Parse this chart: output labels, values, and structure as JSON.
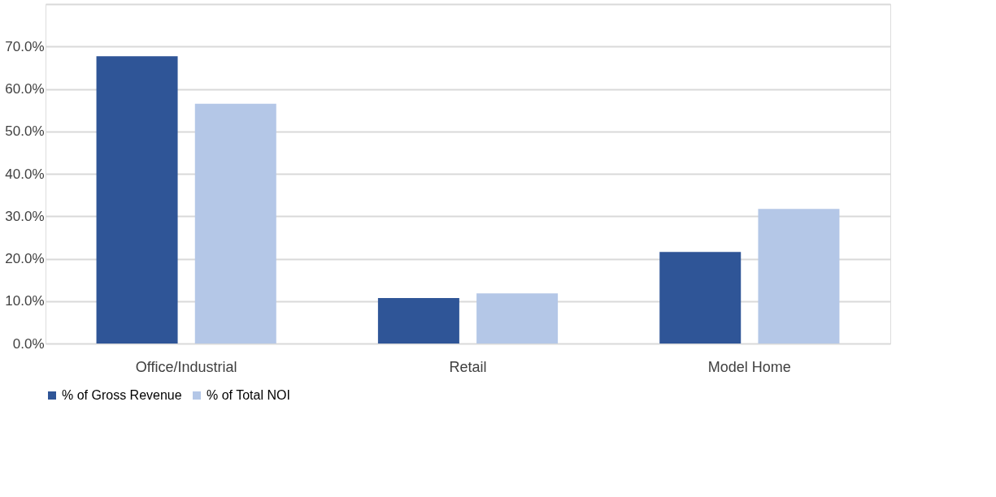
{
  "chart_data": {
    "type": "bar",
    "categories": [
      "Office/Industrial",
      "Retail",
      "Model Home"
    ],
    "series": [
      {
        "name": "% of Gross Revenue",
        "color": "#2f5597",
        "values": [
          67.7,
          10.7,
          21.6
        ]
      },
      {
        "name": "% of Total NOI",
        "color": "#b4c7e7",
        "values": [
          56.5,
          11.8,
          31.7
        ]
      }
    ],
    "ylim": [
      0,
      80
    ],
    "yticks": [
      {
        "value": 0,
        "label": "0.0%"
      },
      {
        "value": 10,
        "label": "10.0%"
      },
      {
        "value": 20,
        "label": "20.0%"
      },
      {
        "value": 30,
        "label": "30.0%"
      },
      {
        "value": 40,
        "label": "40.0%"
      },
      {
        "value": 50,
        "label": "50.0%"
      },
      {
        "value": 60,
        "label": "60.0%"
      },
      {
        "value": 70,
        "label": "70.0%"
      },
      {
        "value": 80,
        "label": null
      }
    ],
    "grid": "y",
    "legend": "bottom"
  }
}
